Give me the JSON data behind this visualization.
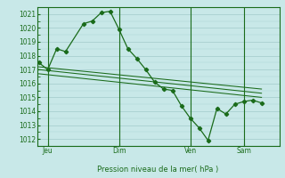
{
  "bg_color": "#c8e8e8",
  "grid_color": "#a8d0d0",
  "line_color": "#1a6b1a",
  "title": "Pression niveau de la mer( hPa )",
  "ylim": [
    1011.5,
    1021.5
  ],
  "yticks": [
    1012,
    1013,
    1014,
    1015,
    1016,
    1017,
    1018,
    1019,
    1020,
    1021
  ],
  "xlim": [
    -0.1,
    13.5
  ],
  "day_labels": [
    "Jeu",
    "Dim",
    "Ven",
    "Sam"
  ],
  "day_positions": [
    0.5,
    4.5,
    8.5,
    11.5
  ],
  "day_vlines": [
    0.5,
    4.5,
    8.5,
    11.5
  ],
  "series1_x": [
    0.0,
    0.5,
    1.0,
    1.5,
    2.5,
    3.0,
    3.5,
    4.0,
    4.5,
    5.0,
    5.5,
    6.0,
    6.5,
    7.0,
    7.5,
    8.0,
    8.5,
    9.0,
    9.5,
    10.0,
    10.5,
    11.0,
    11.5,
    12.0,
    12.5
  ],
  "series1_y": [
    1017.5,
    1017.0,
    1018.5,
    1018.3,
    1020.3,
    1020.5,
    1021.1,
    1021.2,
    1019.9,
    1018.5,
    1017.8,
    1017.0,
    1016.1,
    1015.6,
    1015.5,
    1014.4,
    1013.5,
    1012.8,
    1011.9,
    1014.2,
    1013.8,
    1014.5,
    1014.7,
    1014.8,
    1014.6
  ],
  "series2_x": [
    0.0,
    12.5
  ],
  "series2_y": [
    1017.0,
    1015.3
  ],
  "series3_x": [
    0.0,
    12.5
  ],
  "series3_y": [
    1016.7,
    1015.0
  ],
  "series4_x": [
    0.0,
    12.5
  ],
  "series4_y": [
    1017.2,
    1015.6
  ],
  "title_fontsize": 6.0,
  "tick_fontsize": 5.5,
  "xlabel_fontsize": 6.0
}
